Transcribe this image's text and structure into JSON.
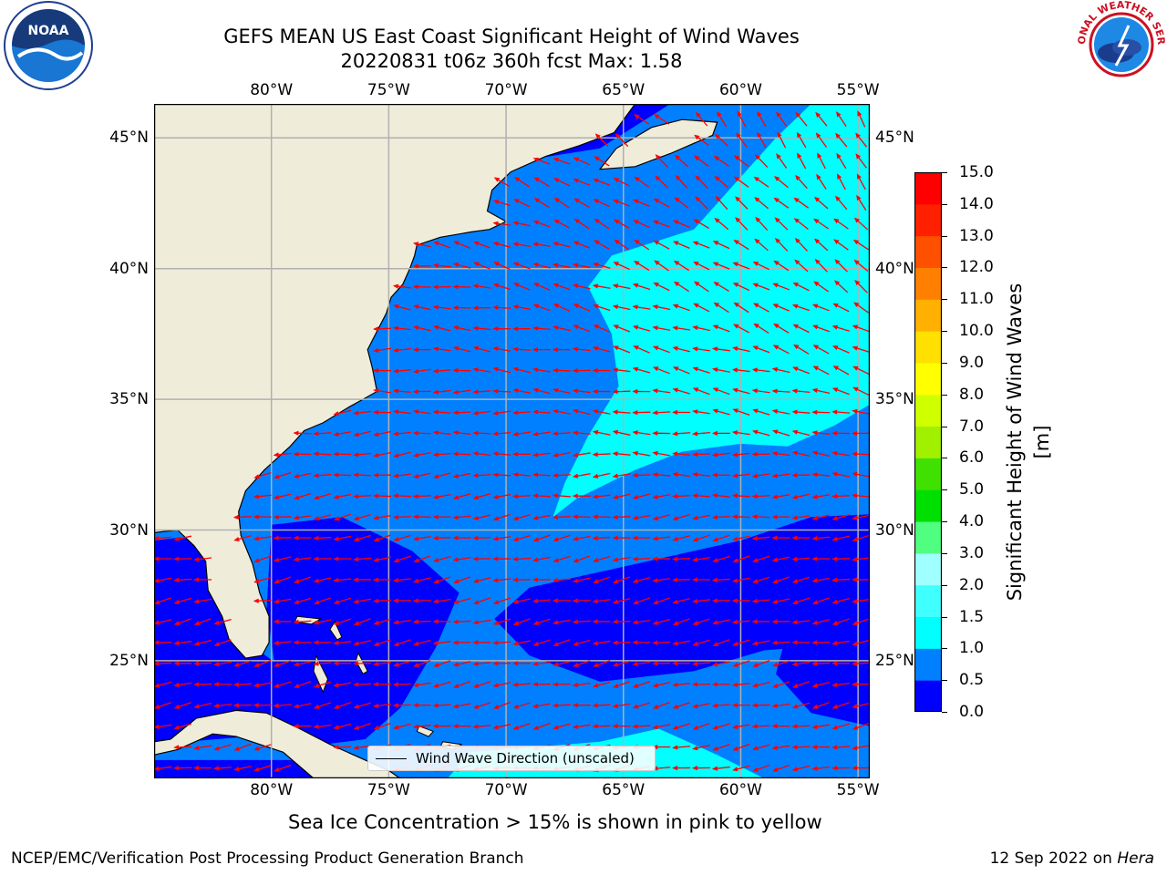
{
  "title": {
    "line1": "GEFS MEAN US East Coast Significant Height of Wind Waves",
    "line2": "20220831 t06z 360h fcst   Max: 1.58"
  },
  "map": {
    "lon_range": [
      -85,
      -54.5
    ],
    "lat_range": [
      20.5,
      46.3
    ],
    "lon_ticks": [
      -80,
      -75,
      -70,
      -65,
      -60,
      -55
    ],
    "lon_tick_labels": [
      "80°W",
      "75°W",
      "70°W",
      "65°W",
      "60°W",
      "55°W"
    ],
    "lat_ticks": [
      45,
      40,
      35,
      30,
      25
    ],
    "lat_tick_labels": [
      "45°N",
      "40°N",
      "35°N",
      "30°N",
      "25°N"
    ],
    "grid": true,
    "land_color": "#efedda",
    "arrow_color": "#ff0000",
    "legend_label": "Wind Wave Direction (unscaled)",
    "legend_position": "bottom-center",
    "wind_direction": "mostly easterly, turning south-easterly to the northeast"
  },
  "colorbar": {
    "label": "Significant Height of Wind Waves [m]",
    "ticks": [
      "0.0",
      "0.5",
      "1.0",
      "1.5",
      "2.0",
      "3.0",
      "4.0",
      "5.0",
      "6.0",
      "7.0",
      "8.0",
      "9.0",
      "10.0",
      "11.0",
      "12.0",
      "13.0",
      "14.0",
      "15.0"
    ],
    "colors": [
      "#0000ff",
      "#0080ff",
      "#00ffff",
      "#40ffff",
      "#a0ffff",
      "#50ff80",
      "#00e000",
      "#40e000",
      "#a0f000",
      "#d0ff00",
      "#ffff00",
      "#ffe000",
      "#ffb000",
      "#ff8000",
      "#ff5000",
      "#ff2000",
      "#ff0000"
    ]
  },
  "field_zones": [
    {
      "value_range": "0.0-0.5",
      "color": "#0000ff",
      "region": "coastal edges, Gulf of Mexico strip, south-central band near 25-30°N"
    },
    {
      "value_range": "0.5-1.0",
      "color": "#0080ff",
      "region": "most of western Atlantic"
    },
    {
      "value_range": "1.0-1.5",
      "color": "#00ffff",
      "region": "open ocean east of 70°W, north of 32°N; small patch near 21°N"
    }
  ],
  "note": "Sea Ice Concentration > 15% is shown in pink to yellow",
  "footer": {
    "left": "NCEP/EMC/Verification Post Processing Product Generation Branch",
    "right_date": "12 Sep 2022 on",
    "right_host": "Hera"
  },
  "logos": {
    "left_text": "NOAA",
    "right_text": "NATIONAL WEATHER SERVICE"
  }
}
